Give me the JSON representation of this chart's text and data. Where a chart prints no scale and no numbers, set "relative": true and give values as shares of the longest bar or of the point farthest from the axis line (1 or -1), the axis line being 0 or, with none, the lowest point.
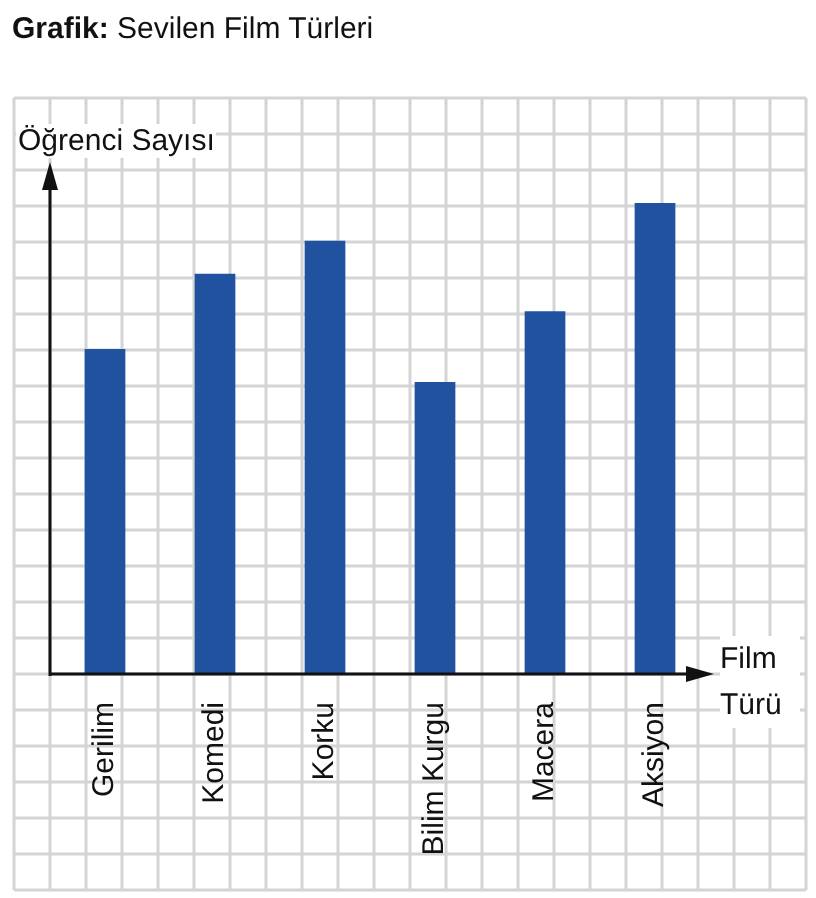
{
  "chart_data": {
    "type": "bar",
    "title": "Grafik: Sevilen Film Türleri",
    "xlabel": "Film Türü",
    "ylabel": "Öğrenci Sayısı",
    "categories": [
      "Gerilim",
      "Komedi",
      "Korku",
      "Bilim Kurgu",
      "Macera",
      "Aksiyon"
    ],
    "values": [
      0.69,
      0.85,
      0.92,
      0.62,
      0.77,
      1
    ],
    "color": "#2152a0",
    "relative": true,
    "grid": true
  }
}
